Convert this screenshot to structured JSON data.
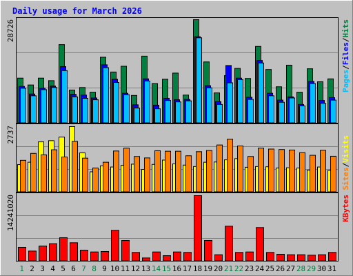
{
  "chart_data": [
    {
      "type": "bar",
      "panel": "hits-files-pages",
      "title": "Daily usage for March 2026",
      "categories": [
        "1",
        "2",
        "3",
        "4",
        "5",
        "6",
        "7",
        "8",
        "9",
        "10",
        "11",
        "12",
        "13",
        "14",
        "15",
        "16",
        "17",
        "18",
        "19",
        "20",
        "21",
        "22",
        "23",
        "24",
        "25",
        "26",
        "27",
        "28",
        "29",
        "30",
        "31"
      ],
      "weekend_days": [
        "1",
        "7",
        "8",
        "14",
        "15",
        "21",
        "22",
        "28",
        "29"
      ],
      "ymax_label": "28726",
      "ylim": [
        0,
        28726
      ],
      "legend": [
        {
          "text": "Pages",
          "color": "#00c0ff"
        },
        {
          "text": "/",
          "color": "#000000"
        },
        {
          "text": "Files",
          "color": "#0000ff"
        },
        {
          "text": "/",
          "color": "#000000"
        },
        {
          "text": "Hits",
          "color": "#008040"
        }
      ],
      "series": [
        {
          "name": "Hits",
          "color": "#008040",
          "values": [
            12500,
            10600,
            12500,
            11800,
            21800,
            9200,
            9900,
            8600,
            18300,
            14200,
            15800,
            7700,
            18600,
            11000,
            12200,
            13900,
            7800,
            28726,
            17000,
            8400,
            13200,
            15200,
            12400,
            21300,
            14900,
            10100,
            16100,
            8600,
            15100,
            11500,
            12300
          ]
        },
        {
          "name": "Files",
          "color": "#0000ff",
          "values": [
            10200,
            8100,
            9700,
            10300,
            15700,
            8000,
            7800,
            7000,
            16200,
            12200,
            8300,
            5100,
            12300,
            5000,
            6900,
            6500,
            6600,
            24000,
            10400,
            6000,
            16000,
            12500,
            7200,
            17400,
            8300,
            6400,
            7300,
            5200,
            11600,
            6300,
            7100
          ]
        },
        {
          "name": "Pages",
          "color": "#00c0ff",
          "values": [
            9700,
            7600,
            9300,
            9900,
            14600,
            7300,
            6900,
            6500,
            15400,
            11300,
            7900,
            4200,
            11700,
            4000,
            6300,
            5900,
            6200,
            23700,
            9800,
            5200,
            11200,
            12100,
            6600,
            16700,
            7600,
            5800,
            7000,
            4800,
            11000,
            5500,
            6400
          ]
        }
      ]
    },
    {
      "type": "bar",
      "panel": "visits-sites",
      "ymax_label": "2737",
      "ylim": [
        0,
        2737
      ],
      "legend": [
        {
          "text": "Sites",
          "color": "#ff8000"
        },
        {
          "text": "/",
          "color": "#000000"
        },
        {
          "text": "Visits",
          "color": "#ffff00"
        }
      ],
      "series": [
        {
          "name": "Visits",
          "color": "#ffff00",
          "values": [
            1150,
            1250,
            2100,
            2150,
            2300,
            2737,
            1640,
            850,
            1100,
            1050,
            1120,
            1170,
            950,
            1160,
            1340,
            1180,
            1130,
            1070,
            1250,
            1260,
            1350,
            1400,
            1040,
            1070,
            1060,
            1010,
            1020,
            1010,
            920,
            1050,
            910
          ]
        },
        {
          "name": "Sites",
          "color": "#ff8000",
          "values": [
            1330,
            1620,
            1560,
            1770,
            1470,
            2120,
            1420,
            1010,
            1250,
            1720,
            1840,
            1490,
            1430,
            1730,
            1710,
            1710,
            1520,
            1690,
            1740,
            1970,
            2210,
            1930,
            1490,
            1840,
            1800,
            1780,
            1760,
            1650,
            1540,
            1750,
            1500
          ]
        }
      ]
    },
    {
      "type": "bar",
      "panel": "kbytes",
      "ymax_label": "14241020",
      "ylim": [
        0,
        14241020
      ],
      "legend": [
        {
          "text": "KBytes",
          "color": "#ff0000"
        }
      ],
      "series": [
        {
          "name": "KBytes",
          "color": "#ff0000",
          "values": [
            3000000,
            2200000,
            3300000,
            3800000,
            5100000,
            4000000,
            2400000,
            2000000,
            2100000,
            6700000,
            4500000,
            1900000,
            700000,
            2000000,
            1200000,
            2000000,
            1900000,
            14241020,
            4500000,
            1400000,
            7600000,
            1900000,
            2000000,
            7300000,
            1900000,
            1500000,
            1400000,
            1400000,
            1300000,
            1400000,
            1900000
          ]
        }
      ]
    }
  ]
}
